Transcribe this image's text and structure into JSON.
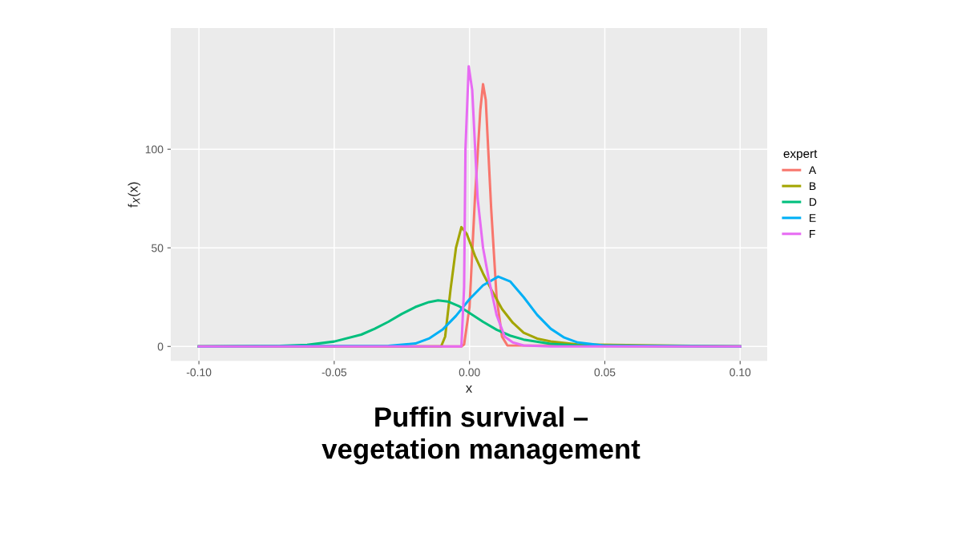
{
  "chart_data": {
    "type": "line",
    "title": "Puffin survival –\nvegetation management",
    "xlabel": "x",
    "ylabel": "f$_{X}$(x)",
    "legend_title": "expert",
    "legend": "right",
    "grid": true,
    "xlim": [
      -0.1104,
      0.11
    ],
    "ylim": [
      -7.3,
      161.4
    ],
    "xticks": [
      {
        "value": -0.1,
        "label": "-0.10"
      },
      {
        "value": -0.05,
        "label": "-0.05"
      },
      {
        "value": 0,
        "label": "0.00"
      },
      {
        "value": 0.05,
        "label": "0.05"
      },
      {
        "value": 0.1,
        "label": "0.10"
      }
    ],
    "yticks": [
      0,
      50,
      100
    ],
    "series": [
      {
        "name": "A",
        "color": "#f8766d",
        "x": [
          -0.1,
          -0.003,
          -0.002,
          0,
          0.002,
          0.004,
          0.005,
          0.006,
          0.008,
          0.01,
          0.012,
          0.014,
          0.1
        ],
        "values": [
          0,
          0,
          1,
          20,
          75,
          120,
          133,
          125,
          70,
          25,
          5,
          0.5,
          0
        ]
      },
      {
        "name": "B",
        "color": "#a3a500",
        "x": [
          -0.1,
          -0.0105,
          -0.009,
          -0.007,
          -0.005,
          -0.003,
          -0.001,
          0.002,
          0.005,
          0.008,
          0.012,
          0.016,
          0.02,
          0.025,
          0.03,
          0.04,
          0.1
        ],
        "values": [
          0,
          0,
          5,
          29,
          50,
          60.5,
          57,
          46,
          37,
          29,
          19,
          12,
          7,
          4,
          2.5,
          1,
          0
        ]
      },
      {
        "name": "D",
        "color": "#00bf7d",
        "x": [
          -0.1,
          -0.07,
          -0.06,
          -0.05,
          -0.04,
          -0.035,
          -0.03,
          -0.025,
          -0.02,
          -0.015,
          -0.0116,
          -0.008,
          -0.004,
          0,
          0.005,
          0.01,
          0.015,
          0.02,
          0.03,
          0.04,
          0.05,
          0.1
        ],
        "values": [
          0,
          0.3,
          0.8,
          2.5,
          6,
          9,
          12.5,
          16.5,
          20,
          22.5,
          23.4,
          22.8,
          20.5,
          17,
          12.5,
          8.5,
          5.5,
          3.5,
          1.3,
          0.5,
          0.2,
          0
        ]
      },
      {
        "name": "E",
        "color": "#00b0f6",
        "x": [
          -0.1,
          -0.03,
          -0.02,
          -0.015,
          -0.01,
          -0.005,
          0,
          0.005,
          0.0106,
          0.015,
          0.02,
          0.025,
          0.03,
          0.035,
          0.04,
          0.05,
          0.1
        ],
        "values": [
          0,
          0.3,
          1.5,
          4,
          8.5,
          15.5,
          24,
          31,
          35.4,
          33,
          25,
          16,
          9,
          4.5,
          2,
          0.4,
          0
        ]
      },
      {
        "name": "F",
        "color": "#e76bf3",
        "x": [
          -0.1,
          -0.003,
          -0.002,
          -0.0015,
          -0.0003,
          0.001,
          0.003,
          0.005,
          0.007,
          0.01,
          0.013,
          0.016,
          0.02,
          0.03,
          0.1
        ],
        "values": [
          0,
          0,
          30,
          100,
          142,
          130,
          75,
          50,
          35,
          16,
          5,
          2,
          0.5,
          0,
          0
        ]
      }
    ]
  }
}
